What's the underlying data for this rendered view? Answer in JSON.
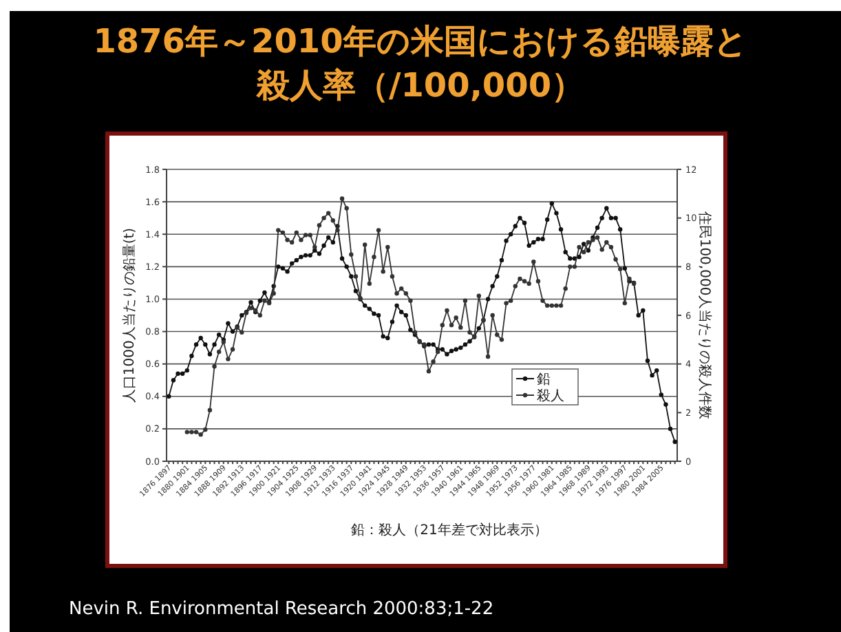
{
  "chart_data": {
    "type": "line",
    "title": "1876年～2010年の米国における鉛曝露と殺人率（/100,000）",
    "xlabel": "鉛：殺人（21年差で対比表示）",
    "ylabel": "人口1000人当たりの鉛量(t)",
    "y2label": "住民100,000人当たりの殺人件数",
    "annotations": [
      "Nevin R. Environmental Research 2000:83;1-22"
    ],
    "categories": [
      "1876 1897",
      null,
      null,
      null,
      "1880 1901",
      null,
      null,
      null,
      "1884 1905",
      null,
      null,
      null,
      "1888 1909",
      null,
      null,
      null,
      "1892 1913",
      null,
      null,
      null,
      "1896 1917",
      null,
      null,
      null,
      "1900 1921",
      null,
      null,
      null,
      "1904 1925",
      null,
      null,
      null,
      "1908 1929",
      null,
      null,
      null,
      "1912 1933",
      null,
      null,
      null,
      "1916 1937",
      null,
      null,
      null,
      "1920 1941",
      null,
      null,
      null,
      "1924 1945",
      null,
      null,
      null,
      "1928 1949",
      null,
      null,
      null,
      "1932 1953",
      null,
      null,
      null,
      "1936 1957",
      null,
      null,
      null,
      "1940 1961",
      null,
      null,
      null,
      "1944 1965",
      null,
      null,
      null,
      "1948 1969",
      null,
      null,
      null,
      "1952 1973",
      null,
      null,
      null,
      "1956 1977",
      null,
      null,
      null,
      "1960 1981",
      null,
      null,
      null,
      "1964 1985",
      null,
      null,
      null,
      "1968 1989",
      null,
      null,
      null,
      "1972 1993",
      null,
      null,
      null,
      "1976 1997",
      null,
      null,
      null,
      "1980 2001",
      null,
      null,
      null,
      "1984 2005",
      null,
      null,
      null
    ],
    "ylim": [
      0,
      1.8
    ],
    "yticks": [
      {
        "value": 0,
        "label": "0.0"
      },
      {
        "value": 0.2,
        "label": "0.2"
      },
      {
        "value": 0.4,
        "label": "0.4"
      },
      {
        "value": 0.6,
        "label": "0.6"
      },
      {
        "value": 0.8,
        "label": "0.8"
      },
      {
        "value": 1,
        "label": "1.0"
      },
      {
        "value": 1.2,
        "label": "1.2"
      },
      {
        "value": 1.4,
        "label": "1.4"
      },
      {
        "value": 1.6,
        "label": "1.6"
      },
      {
        "value": 1.8,
        "label": "1.8"
      }
    ],
    "y2lim": [
      0,
      12
    ],
    "y2ticks": [
      0,
      2,
      4,
      6,
      8,
      10,
      12
    ],
    "grid": "y",
    "legend": "bottom right",
    "marker": "circle",
    "line_style": "solid",
    "series": [
      {
        "name": "鉛",
        "color": "#111111",
        "values": [
          0.4,
          0.5,
          0.54,
          0.54,
          0.56,
          0.65,
          0.72,
          0.76,
          0.72,
          0.66,
          0.72,
          0.78,
          0.75,
          0.85,
          0.8,
          0.83,
          0.9,
          0.92,
          0.98,
          0.92,
          0.99,
          1.04,
          0.98,
          1.08,
          1.2,
          1.19,
          1.17,
          1.22,
          1.24,
          1.26,
          1.27,
          1.27,
          1.3,
          1.28,
          1.33,
          1.38,
          1.35,
          1.45,
          1.25,
          1.2,
          1.14,
          1.05,
          1.0,
          0.96,
          0.94,
          0.91,
          0.9,
          0.77,
          0.76,
          0.86,
          0.96,
          0.92,
          0.9,
          0.81,
          0.78,
          0.74,
          0.71,
          0.72,
          0.72,
          0.69,
          0.69,
          0.66,
          0.68,
          0.69,
          0.7,
          0.72,
          0.74,
          0.77,
          0.82,
          0.87,
          1.0,
          1.08,
          1.14,
          1.24,
          1.36,
          1.4,
          1.45,
          1.5,
          1.47,
          1.33,
          1.35,
          1.37,
          1.37,
          1.49,
          1.59,
          1.53,
          1.43,
          1.29,
          1.25,
          1.25,
          1.26,
          1.34,
          1.3,
          1.38,
          1.44,
          1.5,
          1.56,
          1.5,
          1.5,
          1.43,
          1.19,
          1.11,
          1.1,
          0.9,
          0.93,
          0.62,
          0.53,
          0.56,
          0.41,
          0.35,
          0.2,
          0.12
        ]
      },
      {
        "name": "殺人",
        "color": "#333333",
        "axis": "y2",
        "values": [
          null,
          null,
          null,
          null,
          1.2,
          1.2,
          1.2,
          1.1,
          1.3,
          2.1,
          3.9,
          4.5,
          4.9,
          4.2,
          4.6,
          5.5,
          5.3,
          6.1,
          6.3,
          6.2,
          6.0,
          6.6,
          6.5,
          6.9,
          9.5,
          9.4,
          9.1,
          9.0,
          9.4,
          9.1,
          9.3,
          9.3,
          8.8,
          9.7,
          10.0,
          10.2,
          9.9,
          9.5,
          10.8,
          10.4,
          8.5,
          7.6,
          6.7,
          8.9,
          7.3,
          8.4,
          9.5,
          7.8,
          8.8,
          7.6,
          6.9,
          7.1,
          6.9,
          6.6,
          5.3,
          4.9,
          4.8,
          3.7,
          4.1,
          4.5,
          5.6,
          6.2,
          5.6,
          5.9,
          5.5,
          6.6,
          5.3,
          5.1,
          6.8,
          5.8,
          4.3,
          6.0,
          5.2,
          5.0,
          6.5,
          6.6,
          7.2,
          7.5,
          7.4,
          7.3,
          8.2,
          7.4,
          6.6,
          6.4,
          6.4,
          6.4,
          6.4,
          7.1,
          8.0,
          8.0,
          8.8,
          8.6,
          9.0,
          9.1,
          9.2,
          8.7,
          9.0,
          8.8,
          8.3,
          7.9,
          6.5,
          7.5,
          7.3,
          null,
          null,
          null,
          null,
          null,
          null,
          null,
          null,
          null
        ]
      }
    ]
  }
}
